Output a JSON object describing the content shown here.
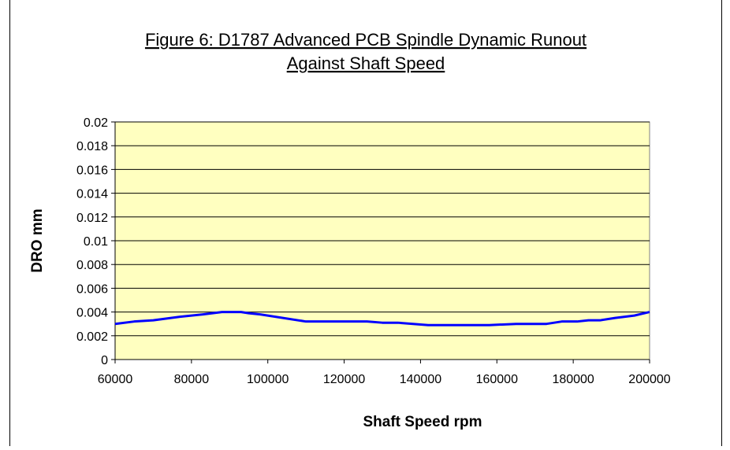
{
  "chart_data": {
    "type": "line",
    "title": [
      "Figure 6: D1787 Advanced PCB Spindle Dynamic Runout",
      "Against Shaft Speed"
    ],
    "x_label": "Shaft Speed rpm",
    "y_label": "DRO mm",
    "x": [
      60000,
      65000,
      70000,
      77000,
      83000,
      88000,
      93000,
      95000,
      98000,
      110000,
      126000,
      130000,
      134000,
      142000,
      150000,
      158000,
      165000,
      173000,
      177000,
      181000,
      184000,
      187000,
      191000,
      196000,
      200000
    ],
    "series": [
      {
        "name": "DRO",
        "color": "#0000ff",
        "values": [
          0.003,
          0.0032,
          0.0033,
          0.0036,
          0.0038,
          0.004,
          0.004,
          0.0039,
          0.0038,
          0.0032,
          0.0032,
          0.0031,
          0.0031,
          0.0029,
          0.0029,
          0.0029,
          0.003,
          0.003,
          0.0032,
          0.0032,
          0.0033,
          0.0033,
          0.0035,
          0.0037,
          0.004
        ]
      }
    ],
    "xlim": [
      60000,
      200000
    ],
    "xticks": [
      60000,
      80000,
      100000,
      120000,
      140000,
      160000,
      180000,
      200000
    ],
    "ylim": [
      0,
      0.02
    ],
    "yticks": [
      0,
      0.002,
      0.004,
      0.006,
      0.008,
      0.01,
      0.012,
      0.014,
      0.016,
      0.018,
      0.02
    ],
    "grid": true,
    "plot_background": "#ffffc0"
  }
}
